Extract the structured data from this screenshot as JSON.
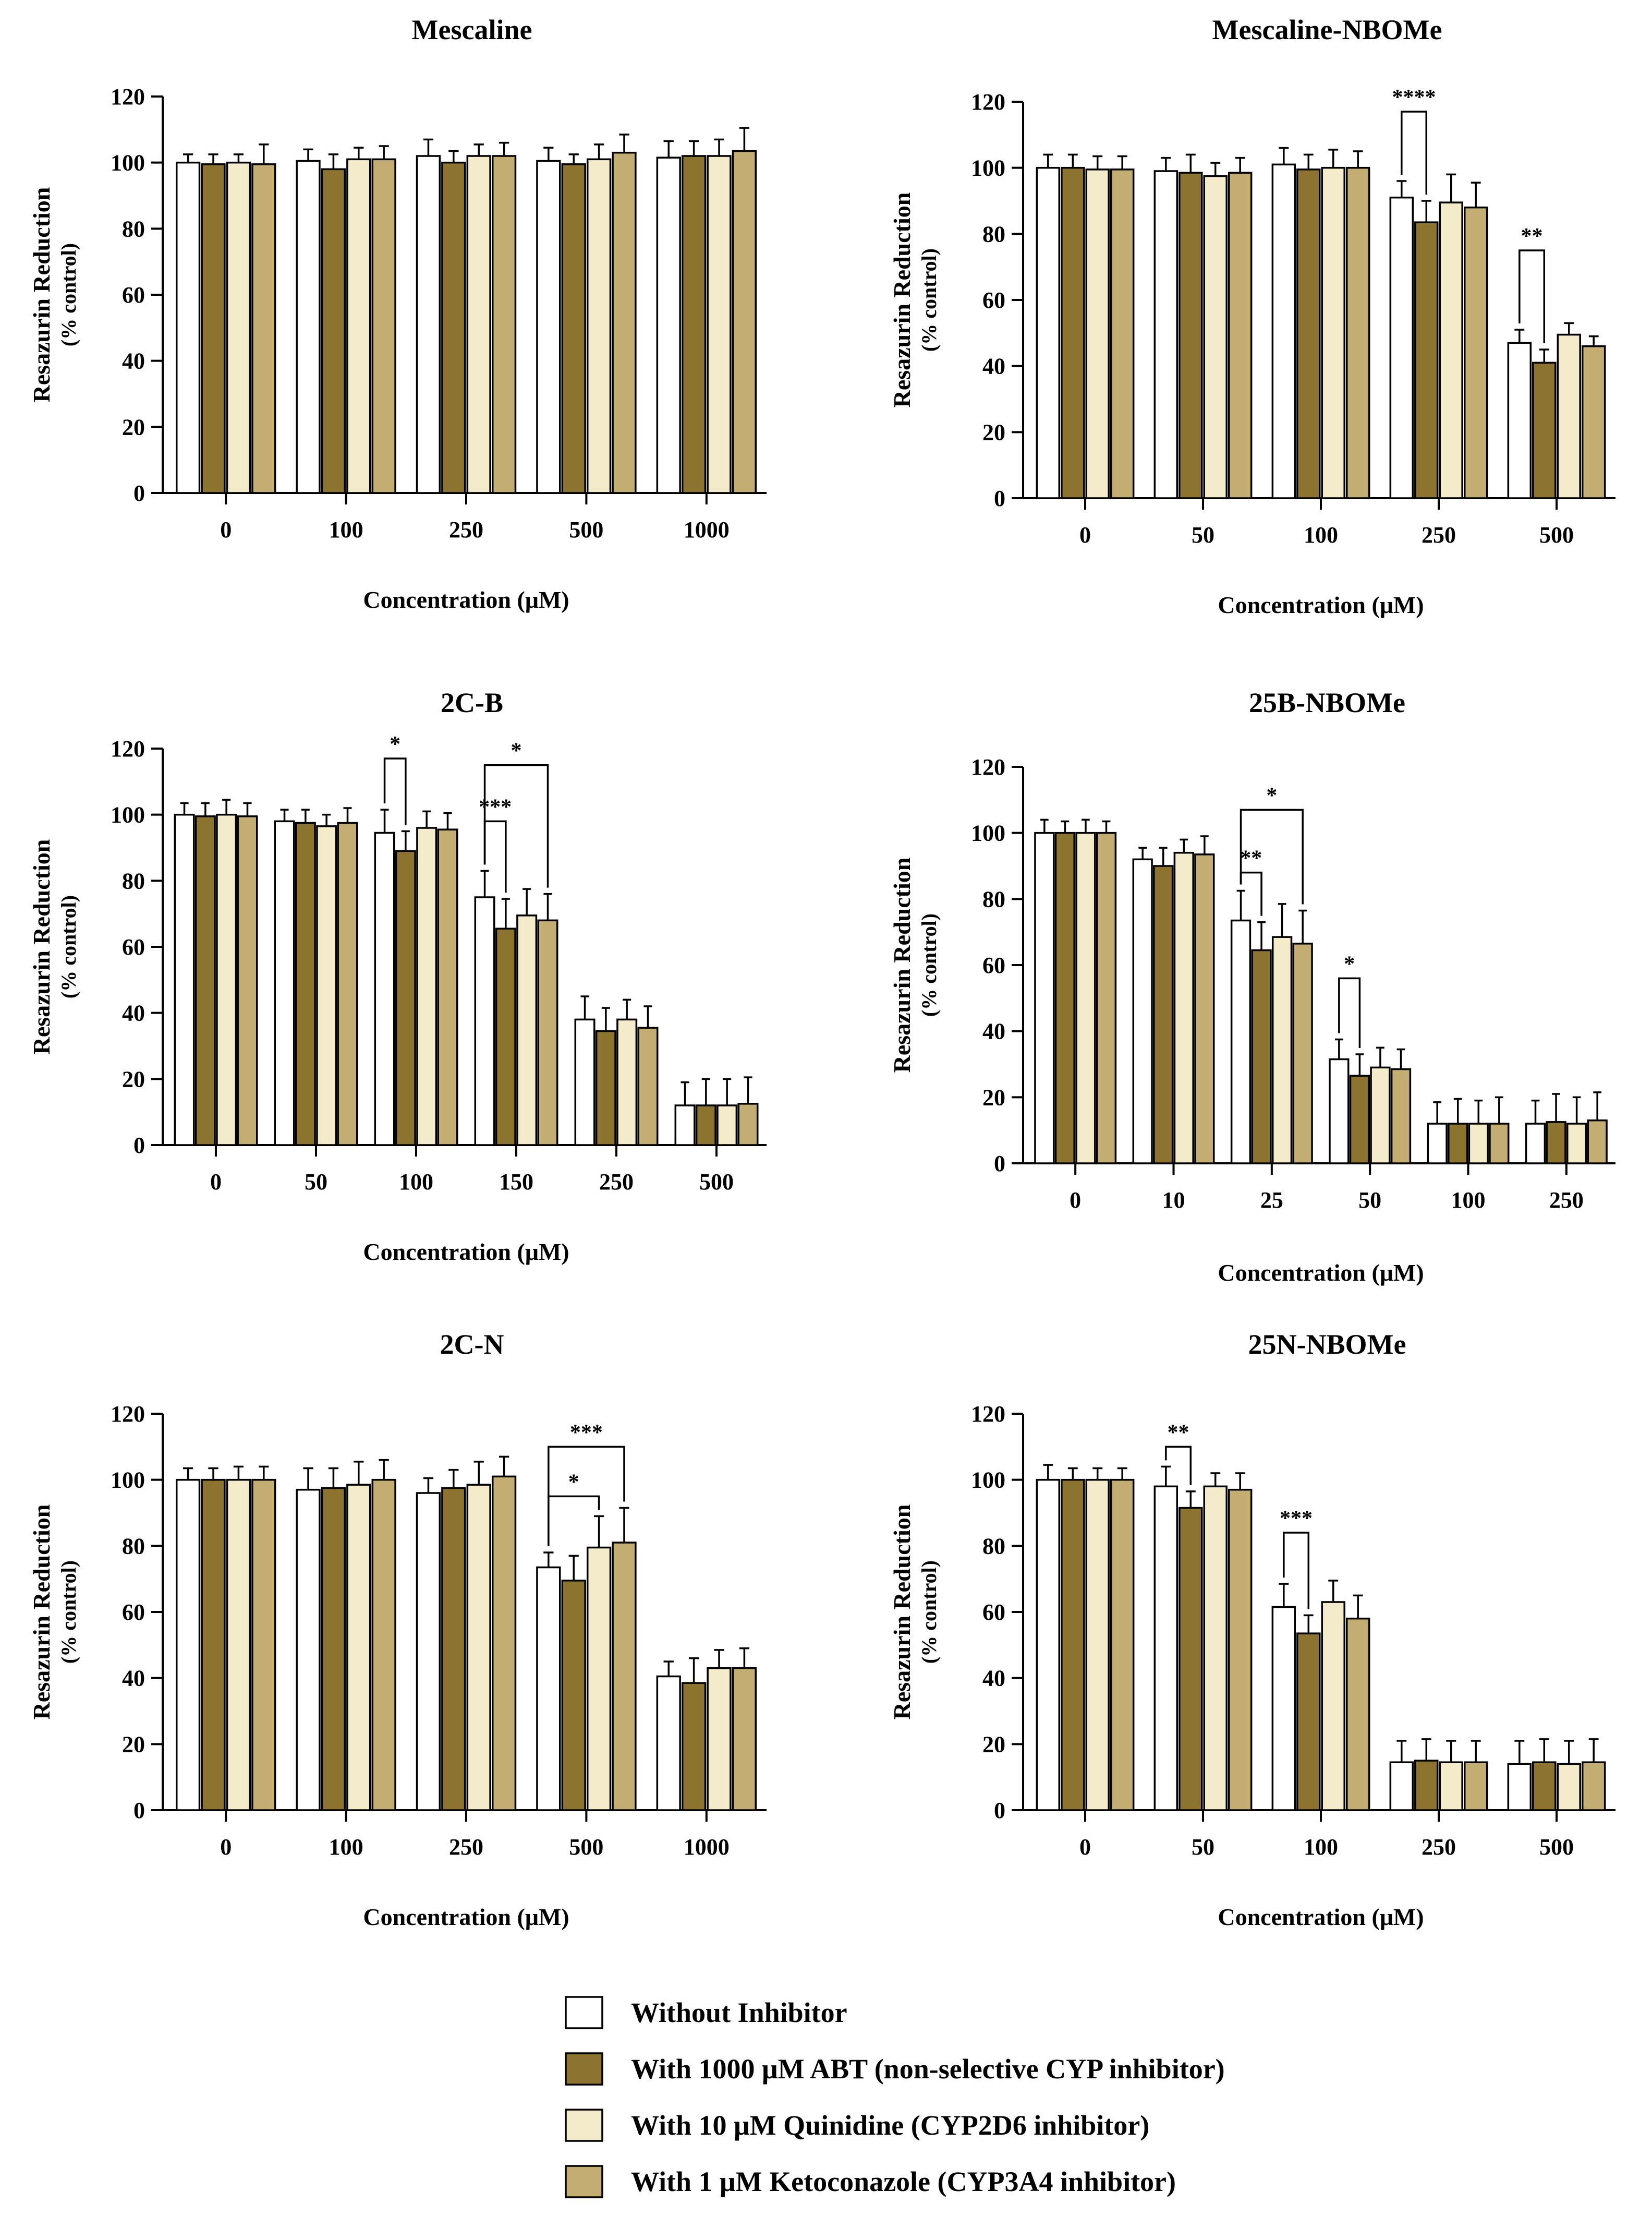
{
  "colors": {
    "without": "#ffffff",
    "abt": "#8c7430",
    "quinidine": "#f3ebca",
    "ketoconazole": "#c4ad72",
    "stroke": "#000000"
  },
  "legend": {
    "items": [
      {
        "key": "without",
        "label": "Without Inhibitor"
      },
      {
        "key": "abt",
        "label": "With 1000 μM ABT (non-selective  CYP inhibitor)"
      },
      {
        "key": "quinidine",
        "label": "With 10 μM Quinidine (CYP2D6 inhibitor)"
      },
      {
        "key": "ketoconazole",
        "label": "With 1 μM Ketoconazole (CYP3A4 inhibitor)"
      }
    ]
  },
  "chart_data": [
    {
      "type": "bar",
      "title": "Mescaline",
      "xlabel": "Concentration (μM)",
      "ylabel": "Resazurin Reduction",
      "ylabel2": "(% control)",
      "ylim": [
        0,
        120
      ],
      "yticks": [
        0,
        20,
        40,
        60,
        80,
        100,
        120
      ],
      "categories": [
        "0",
        "100",
        "250",
        "500",
        "1000"
      ],
      "series": [
        {
          "key": "without",
          "name": "Without Inhibitor",
          "values": [
            100,
            100.5,
            102,
            100.5,
            101.5
          ],
          "errors": [
            2.5,
            3.5,
            5,
            4,
            5
          ]
        },
        {
          "key": "abt",
          "name": "With 1000 μM ABT",
          "values": [
            99.5,
            98,
            100,
            99.5,
            102
          ],
          "errors": [
            3,
            4.5,
            3.5,
            3,
            4.5
          ]
        },
        {
          "key": "quinidine",
          "name": "With 10 μM Quinidine",
          "values": [
            100,
            101,
            102,
            101,
            102
          ],
          "errors": [
            2.5,
            3.5,
            3.5,
            4.5,
            5
          ]
        },
        {
          "key": "ketoconazole",
          "name": "With 1 μM Ketoconazole",
          "values": [
            99.5,
            101,
            102,
            103,
            103.5
          ],
          "errors": [
            6,
            4,
            4,
            5.5,
            7
          ]
        }
      ],
      "significance": []
    },
    {
      "type": "bar",
      "title": "Mescaline-NBOMe",
      "xlabel": "Concentration (μM)",
      "ylabel": "Resazurin Reduction",
      "ylabel2": "(% control)",
      "ylim": [
        0,
        120
      ],
      "yticks": [
        0,
        20,
        40,
        60,
        80,
        100,
        120
      ],
      "categories": [
        "0",
        "50",
        "100",
        "250",
        "500"
      ],
      "series": [
        {
          "key": "without",
          "name": "Without Inhibitor",
          "values": [
            100,
            99,
            101,
            91,
            47
          ],
          "errors": [
            4,
            4,
            5,
            5,
            4
          ]
        },
        {
          "key": "abt",
          "name": "With 1000 μM ABT",
          "values": [
            100,
            98.5,
            99.5,
            83.5,
            41
          ],
          "errors": [
            4,
            5.5,
            4.5,
            6.5,
            4
          ]
        },
        {
          "key": "quinidine",
          "name": "With 10 μM Quinidine",
          "values": [
            99.5,
            97.5,
            100,
            89.5,
            49.5
          ],
          "errors": [
            4,
            4,
            5.5,
            8.5,
            3.5
          ]
        },
        {
          "key": "ketoconazole",
          "name": "With 1 μM Ketoconazole",
          "values": [
            99.5,
            98.5,
            100,
            88,
            46
          ],
          "errors": [
            4,
            4.5,
            5,
            7.5,
            3
          ]
        }
      ],
      "significance": [
        {
          "group": 3,
          "from": 0,
          "to": 1,
          "label": "****",
          "y": 117
        },
        {
          "group": 4,
          "from": 0,
          "to": 1,
          "label": "**",
          "y": 75
        }
      ]
    },
    {
      "type": "bar",
      "title": "2C-B",
      "xlabel": "Concentration (μM)",
      "ylabel": "Resazurin Reduction",
      "ylabel2": "(% control)",
      "ylim": [
        0,
        120
      ],
      "yticks": [
        0,
        20,
        40,
        60,
        80,
        100,
        120
      ],
      "categories": [
        "0",
        "50",
        "100",
        "150",
        "250",
        "500"
      ],
      "series": [
        {
          "key": "without",
          "name": "Without Inhibitor",
          "values": [
            100,
            98,
            94.5,
            75,
            38,
            12
          ],
          "errors": [
            3.5,
            3.5,
            7,
            8,
            7,
            7
          ]
        },
        {
          "key": "abt",
          "name": "With 1000 μM ABT",
          "values": [
            99.5,
            97.5,
            89,
            65.5,
            34.5,
            12
          ],
          "errors": [
            4,
            4,
            6,
            9,
            7,
            8
          ]
        },
        {
          "key": "quinidine",
          "name": "With 10 μM Quinidine",
          "values": [
            100,
            96.5,
            96,
            69.5,
            38,
            12
          ],
          "errors": [
            4.5,
            3.5,
            5,
            8,
            6,
            8
          ]
        },
        {
          "key": "ketoconazole",
          "name": "With 1 μM Ketoconazole",
          "values": [
            99.5,
            97.5,
            95.5,
            68,
            35.5,
            12.5
          ],
          "errors": [
            4,
            4.5,
            5,
            8,
            6.5,
            8
          ]
        }
      ],
      "significance": [
        {
          "group": 2,
          "from": 0,
          "to": 1,
          "label": "*",
          "y": 117
        },
        {
          "group": 3,
          "from": 0,
          "to": 1,
          "label": "***",
          "y": 98
        },
        {
          "group": 3,
          "from": 0,
          "to": 3,
          "label": "*",
          "y": 115
        }
      ]
    },
    {
      "type": "bar",
      "title": "25B-NBOMe",
      "xlabel": "Concentration (μM)",
      "ylabel": "Resazurin Reduction",
      "ylabel2": "(% control)",
      "ylim": [
        0,
        120
      ],
      "yticks": [
        0,
        20,
        40,
        60,
        80,
        100,
        120
      ],
      "categories": [
        "0",
        "10",
        "25",
        "50",
        "100",
        "250"
      ],
      "series": [
        {
          "key": "without",
          "name": "Without Inhibitor",
          "values": [
            100,
            92,
            73.5,
            31.5,
            12,
            12
          ],
          "errors": [
            4,
            3.5,
            9,
            6,
            6.5,
            7
          ]
        },
        {
          "key": "abt",
          "name": "With 1000 μM ABT",
          "values": [
            100,
            90,
            64.5,
            26.5,
            12,
            12.5
          ],
          "errors": [
            3.5,
            5.5,
            8.5,
            6.5,
            7.5,
            8.5
          ]
        },
        {
          "key": "quinidine",
          "name": "With 10 μM Quinidine",
          "values": [
            100,
            94,
            68.5,
            29,
            12,
            12
          ],
          "errors": [
            4,
            4,
            10,
            6,
            7,
            8
          ]
        },
        {
          "key": "ketoconazole",
          "name": "With 1 μM Ketoconazole",
          "values": [
            100,
            93.5,
            66.5,
            28.5,
            12,
            13
          ],
          "errors": [
            3.5,
            5.5,
            10,
            6,
            8,
            8.5
          ]
        }
      ],
      "significance": [
        {
          "group": 2,
          "from": 0,
          "to": 1,
          "label": "**",
          "y": 88
        },
        {
          "group": 2,
          "from": 0,
          "to": 3,
          "label": "*",
          "y": 107
        },
        {
          "group": 3,
          "from": 0,
          "to": 1,
          "label": "*",
          "y": 56
        }
      ]
    },
    {
      "type": "bar",
      "title": "2C-N",
      "xlabel": "Concentration (μM)",
      "ylabel": "Resazurin Reduction",
      "ylabel2": "(% control)",
      "ylim": [
        0,
        120
      ],
      "yticks": [
        0,
        20,
        40,
        60,
        80,
        100,
        120
      ],
      "categories": [
        "0",
        "100",
        "250",
        "500",
        "1000"
      ],
      "series": [
        {
          "key": "without",
          "name": "Without Inhibitor",
          "values": [
            100,
            97,
            96,
            73.5,
            40.5
          ],
          "errors": [
            3.5,
            6.5,
            4.5,
            4.5,
            4.5
          ]
        },
        {
          "key": "abt",
          "name": "With 1000 μM ABT",
          "values": [
            100,
            97.5,
            97.5,
            69.5,
            38.5
          ],
          "errors": [
            3.5,
            6,
            5.5,
            7.5,
            7.5
          ]
        },
        {
          "key": "quinidine",
          "name": "With 10 μM Quinidine",
          "values": [
            100,
            98.5,
            98.5,
            79.5,
            43
          ],
          "errors": [
            4,
            7,
            7,
            9.5,
            5.5
          ]
        },
        {
          "key": "ketoconazole",
          "name": "With 1 μM Ketoconazole",
          "values": [
            100,
            100,
            101,
            81,
            43
          ],
          "errors": [
            4,
            6,
            6,
            10.5,
            6
          ]
        }
      ],
      "significance": [
        {
          "group": 3,
          "from": 0,
          "to": 2,
          "label": "*",
          "y": 95
        },
        {
          "group": 3,
          "from": 0,
          "to": 3,
          "label": "***",
          "y": 110
        }
      ]
    },
    {
      "type": "bar",
      "title": "25N-NBOMe",
      "xlabel": "Concentration (μM)",
      "ylabel": "Resazurin Reduction",
      "ylabel2": "(% control)",
      "ylim": [
        0,
        120
      ],
      "yticks": [
        0,
        20,
        40,
        60,
        80,
        100,
        120
      ],
      "categories": [
        "0",
        "50",
        "100",
        "250",
        "500"
      ],
      "series": [
        {
          "key": "without",
          "name": "Without Inhibitor",
          "values": [
            100,
            98,
            61.5,
            14.5,
            14
          ],
          "errors": [
            4.5,
            6,
            7,
            6.5,
            7
          ]
        },
        {
          "key": "abt",
          "name": "With 1000 μM ABT",
          "values": [
            100,
            91.5,
            53.5,
            15,
            14.5
          ],
          "errors": [
            3.5,
            5,
            5.5,
            6.5,
            7
          ]
        },
        {
          "key": "quinidine",
          "name": "With 10 μM Quinidine",
          "values": [
            100,
            98,
            63,
            14.5,
            14
          ],
          "errors": [
            3.5,
            4,
            6.5,
            6.5,
            7
          ]
        },
        {
          "key": "ketoconazole",
          "name": "With 1 μM Ketoconazole",
          "values": [
            100,
            97,
            58,
            14.5,
            14.5
          ],
          "errors": [
            3.5,
            5,
            7,
            6.5,
            7
          ]
        }
      ],
      "significance": [
        {
          "group": 1,
          "from": 0,
          "to": 1,
          "label": "**",
          "y": 110
        },
        {
          "group": 2,
          "from": 0,
          "to": 1,
          "label": "***",
          "y": 84
        }
      ]
    }
  ]
}
